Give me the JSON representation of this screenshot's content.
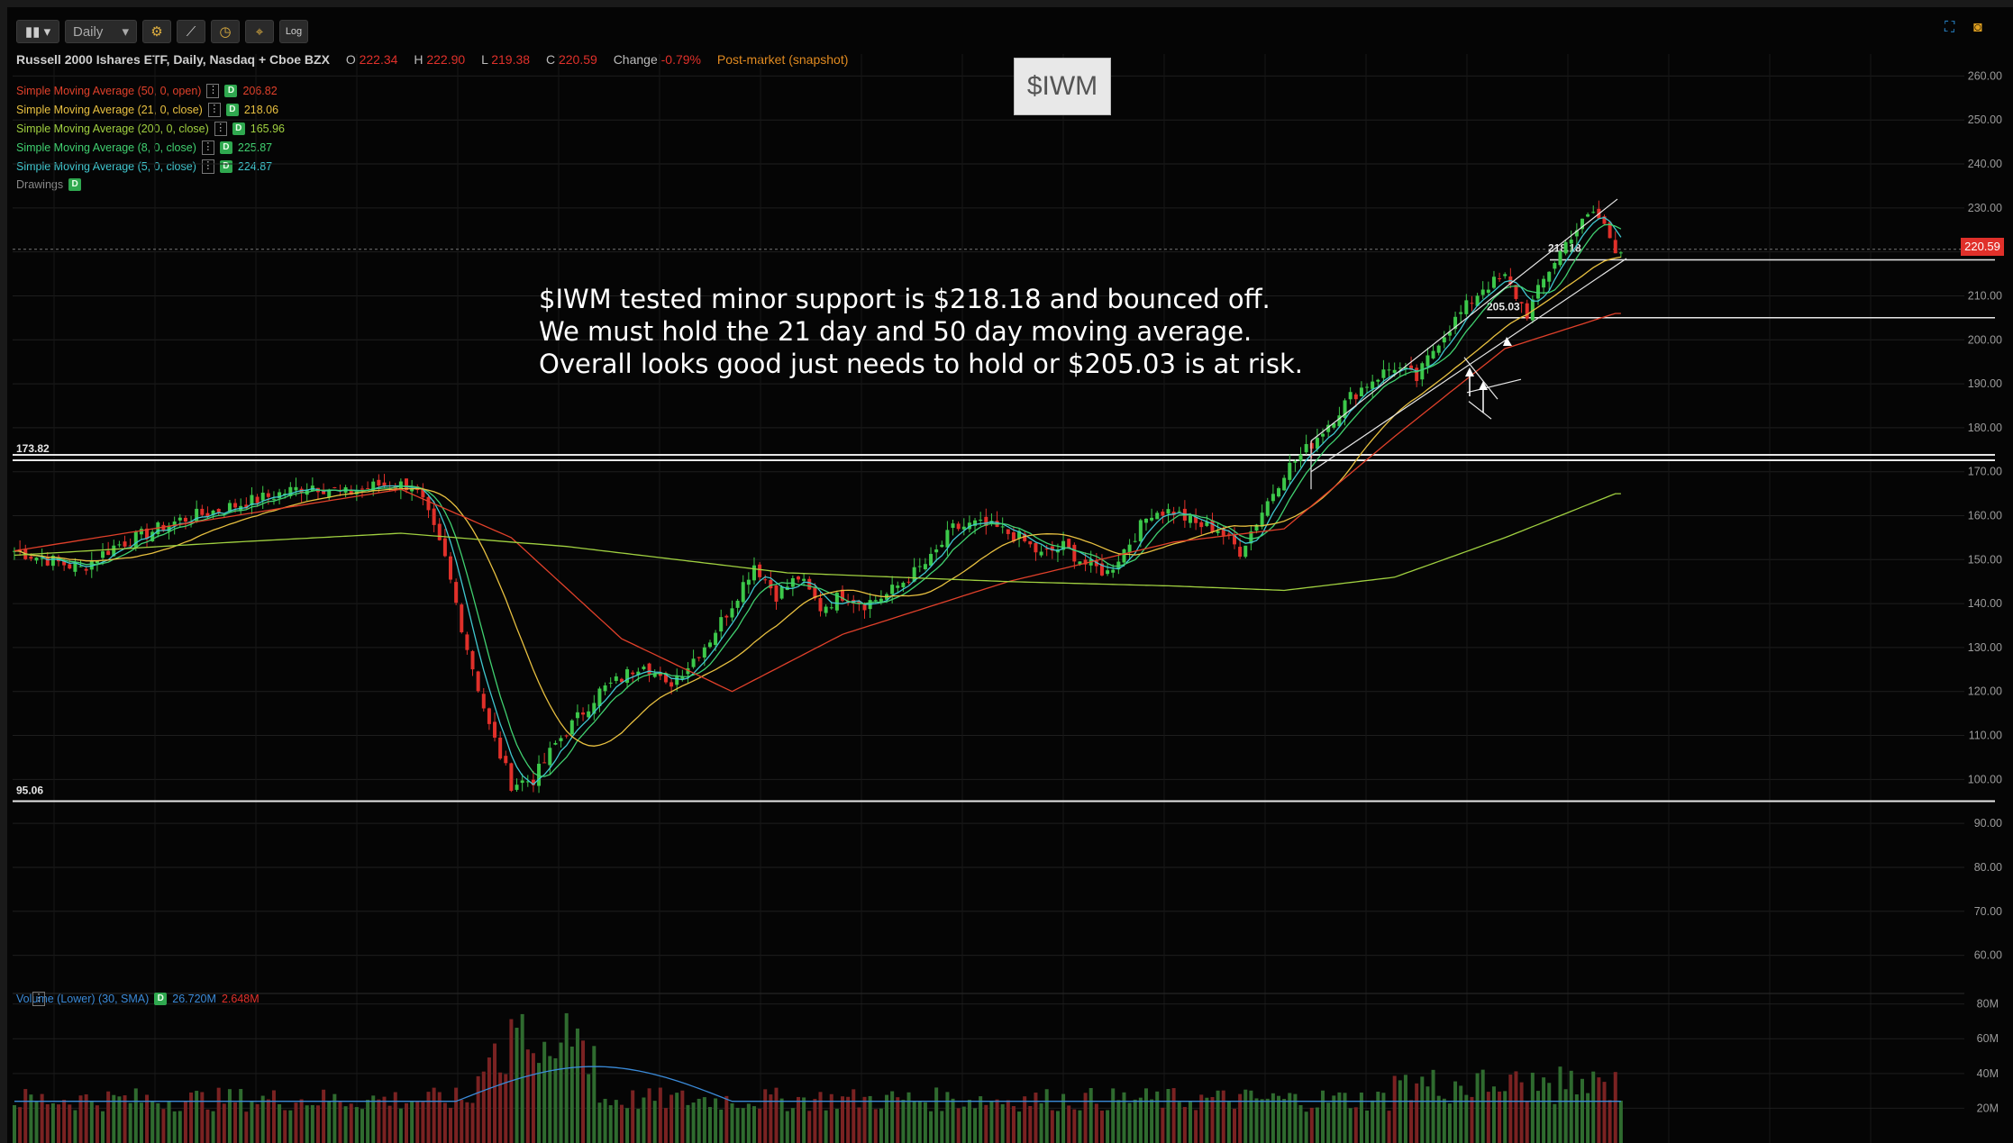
{
  "toolbar": {
    "interval": "Daily",
    "log_label": "Log"
  },
  "header": {
    "title": "Russell 2000 Ishares ETF, Daily, Nasdaq + Cboe BZX",
    "open_label": "O",
    "open": "222.34",
    "high_label": "H",
    "high": "222.90",
    "low_label": "L",
    "low": "219.38",
    "close_label": "C",
    "close": "220.59",
    "change_label": "Change",
    "change": "-0.79%",
    "postmarket": "Post-market (snapshot)"
  },
  "studies": [
    {
      "label": "Simple Moving Average (50, 0, open)",
      "value": "206.82",
      "color": "#e0402a"
    },
    {
      "label": "Simple Moving Average (21, 0, close)",
      "value": "218.06",
      "color": "#e8c040"
    },
    {
      "label": "Simple Moving Average (200, 0, close)",
      "value": "165.96",
      "color": "#a0d040"
    },
    {
      "label": "Simple Moving Average (8, 0, close)",
      "value": "225.87",
      "color": "#40d070"
    },
    {
      "label": "Simple Moving Average (5, 0, close)",
      "value": "224.87",
      "color": "#40c8d0"
    }
  ],
  "drawings_label": "Drawings",
  "ticker_box": "$IWM",
  "annotation": {
    "line1": "$IWM tested minor support is $218.18 and bounced off.",
    "line2": "We must hold the 21 day and 50 day moving average.",
    "line3": "Overall looks good just needs to hold or $205.03 is at risk."
  },
  "last_price_tag": "220.59",
  "volume_header": {
    "label": "Volume (Lower) (30, SMA)",
    "value1": "26.720M",
    "value2": "2.648M"
  },
  "chart_data": {
    "type": "candlestick",
    "y_axis": {
      "range": [
        55,
        265
      ],
      "ticks": [
        "260.00",
        "250.00",
        "240.00",
        "230.00",
        "220.00",
        "210.00",
        "200.00",
        "190.00",
        "180.00",
        "170.00",
        "160.00",
        "150.00",
        "140.00",
        "130.00",
        "120.00",
        "110.00",
        "100.00",
        "90.00",
        "80.00",
        "70.00",
        "60.00"
      ]
    },
    "volume_axis": {
      "range": [
        0,
        85
      ],
      "ticks": [
        "80M",
        "60M",
        "40M",
        "20M"
      ]
    },
    "levels": [
      {
        "label": "173.82",
        "value": 173.82
      },
      {
        "label": "172.6",
        "value": 172.6
      },
      {
        "label": "95.06",
        "value": 95.06
      },
      {
        "label": "218.18",
        "value": 218.18
      },
      {
        "label": "205.03",
        "value": 205.03
      }
    ],
    "close_path": [
      [
        0,
        152
      ],
      [
        6,
        150
      ],
      [
        12,
        148
      ],
      [
        18,
        153
      ],
      [
        24,
        156
      ],
      [
        30,
        159
      ],
      [
        36,
        161
      ],
      [
        42,
        163
      ],
      [
        48,
        165
      ],
      [
        54,
        167
      ],
      [
        60,
        165
      ],
      [
        66,
        167
      ],
      [
        72,
        167
      ],
      [
        74,
        163
      ],
      [
        78,
        150
      ],
      [
        82,
        130
      ],
      [
        86,
        112
      ],
      [
        90,
        99
      ],
      [
        94,
        100
      ],
      [
        98,
        108
      ],
      [
        102,
        114
      ],
      [
        106,
        120
      ],
      [
        110,
        123
      ],
      [
        114,
        127
      ],
      [
        118,
        121
      ],
      [
        122,
        126
      ],
      [
        126,
        132
      ],
      [
        130,
        140
      ],
      [
        134,
        149
      ],
      [
        138,
        142
      ],
      [
        142,
        146
      ],
      [
        146,
        139
      ],
      [
        150,
        142
      ],
      [
        154,
        140
      ],
      [
        158,
        142
      ],
      [
        162,
        146
      ],
      [
        166,
        150
      ],
      [
        170,
        157
      ],
      [
        174,
        158
      ],
      [
        178,
        157
      ],
      [
        182,
        155
      ],
      [
        186,
        151
      ],
      [
        190,
        153
      ],
      [
        194,
        149
      ],
      [
        198,
        147
      ],
      [
        202,
        154
      ],
      [
        206,
        161
      ],
      [
        210,
        161
      ],
      [
        214,
        158
      ],
      [
        218,
        157
      ],
      [
        222,
        152
      ],
      [
        226,
        161
      ],
      [
        230,
        170
      ],
      [
        234,
        175
      ],
      [
        238,
        181
      ],
      [
        242,
        187
      ],
      [
        246,
        191
      ],
      [
        250,
        194
      ],
      [
        254,
        191
      ],
      [
        258,
        200
      ],
      [
        262,
        206
      ],
      [
        266,
        212
      ],
      [
        270,
        214
      ],
      [
        274,
        206
      ],
      [
        278,
        216
      ],
      [
        282,
        224
      ],
      [
        286,
        229
      ],
      [
        288,
        226
      ],
      [
        290,
        221
      ]
    ],
    "sma200_path": [
      [
        0,
        151
      ],
      [
        40,
        154
      ],
      [
        70,
        156
      ],
      [
        100,
        153
      ],
      [
        140,
        147
      ],
      [
        180,
        145
      ],
      [
        210,
        144
      ],
      [
        230,
        143
      ],
      [
        250,
        146
      ],
      [
        270,
        155
      ],
      [
        290,
        165
      ]
    ],
    "sma50_path": [
      [
        0,
        152
      ],
      [
        40,
        160
      ],
      [
        70,
        166
      ],
      [
        90,
        155
      ],
      [
        110,
        132
      ],
      [
        130,
        120
      ],
      [
        150,
        133
      ],
      [
        180,
        145
      ],
      [
        210,
        154
      ],
      [
        230,
        157
      ],
      [
        250,
        178
      ],
      [
        270,
        198
      ],
      [
        290,
        206
      ]
    ]
  }
}
